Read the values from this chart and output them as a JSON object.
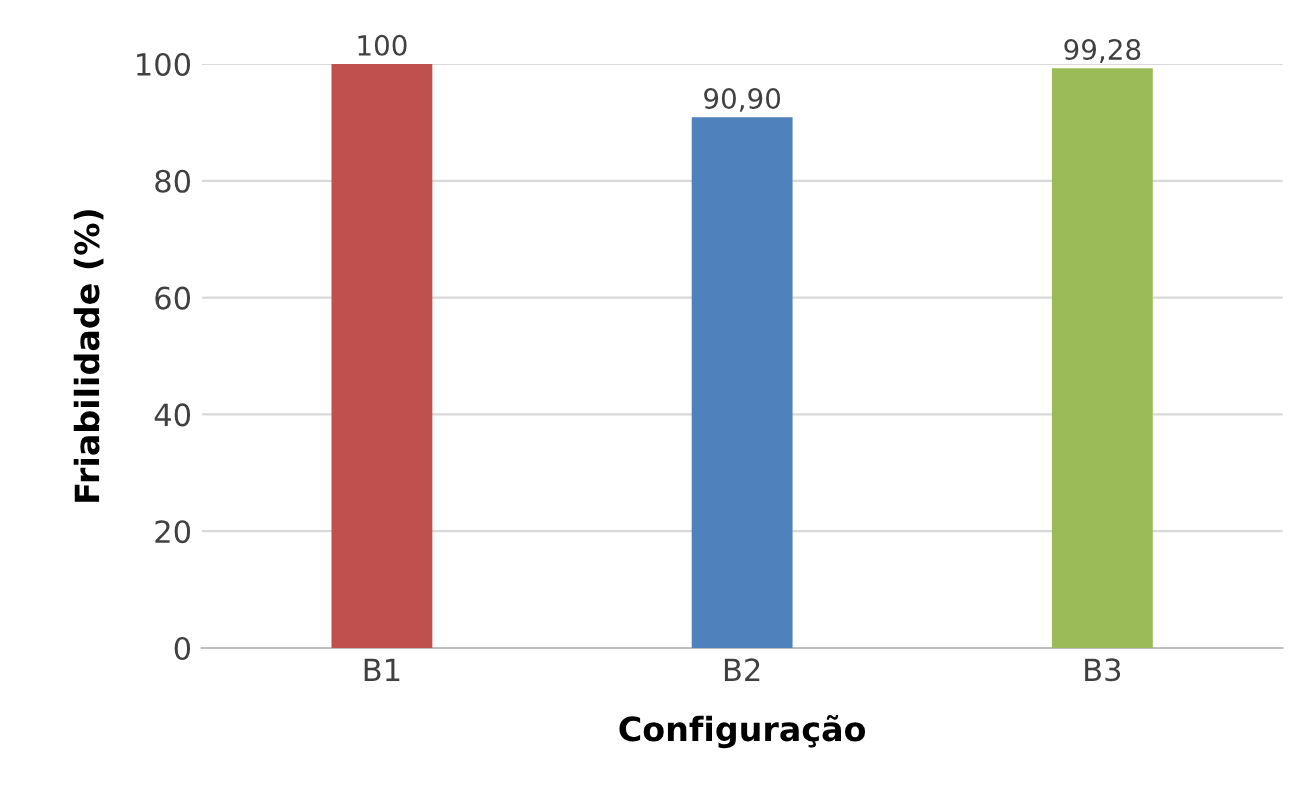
{
  "chart_data": {
    "type": "bar",
    "xlabel": "Configuração",
    "ylabel": "Friabilidade (%)",
    "categories": [
      "B1",
      "B2",
      "B3"
    ],
    "values": [
      100,
      90.9,
      99.28
    ],
    "value_labels": [
      "100",
      "90,90",
      "99,28"
    ],
    "colors": [
      "#c0504d",
      "#4f81bd",
      "#9bbb59"
    ],
    "ylim": [
      0,
      100
    ],
    "yticks": [
      0,
      20,
      40,
      60,
      80,
      100
    ],
    "grid": "y",
    "legend": false
  }
}
